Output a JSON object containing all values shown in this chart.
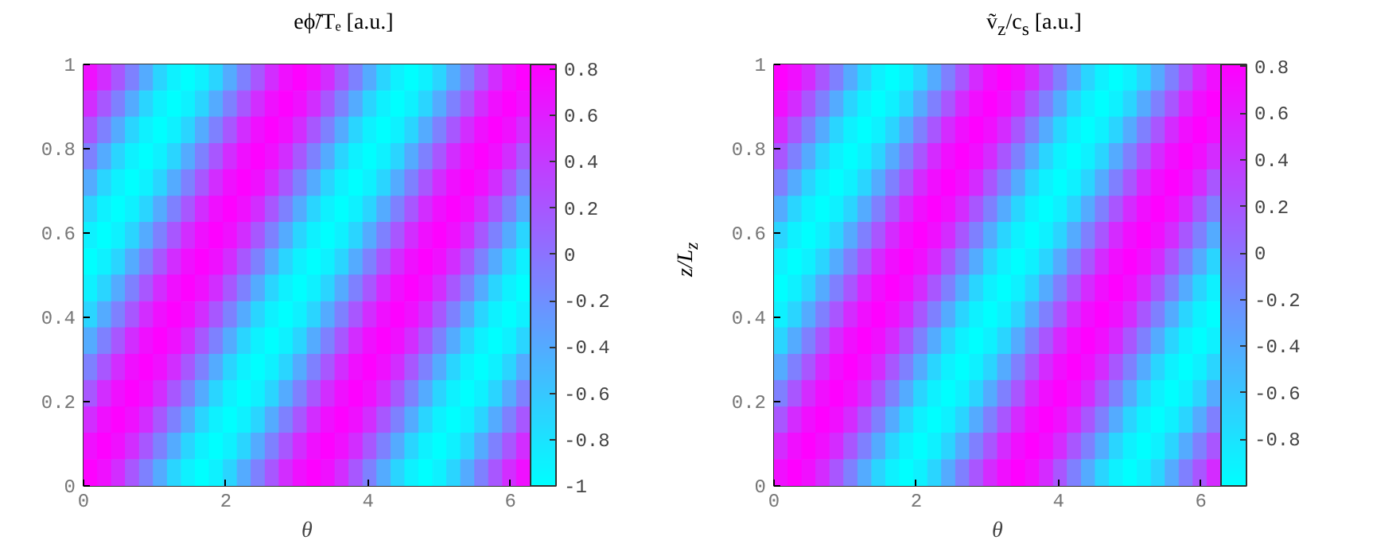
{
  "chart_data": [
    {
      "type": "heatmap",
      "title": "eϕ̃/Tₑ [a.u.]",
      "xlabel": "θ",
      "x": [
        0.098,
        0.295,
        0.491,
        0.687,
        0.884,
        1.08,
        1.276,
        1.473,
        1.669,
        1.865,
        2.062,
        2.258,
        2.454,
        2.651,
        2.847,
        3.043,
        3.24,
        3.436,
        3.632,
        3.829,
        4.025,
        4.221,
        4.418,
        4.614,
        4.81,
        5.007,
        5.203,
        5.399,
        5.596,
        5.792,
        5.988,
        6.185
      ],
      "y": [
        0.969,
        0.906,
        0.844,
        0.781,
        0.719,
        0.656,
        0.594,
        0.531,
        0.469,
        0.406,
        0.344,
        0.281,
        0.219,
        0.156,
        0.094,
        0.031
      ],
      "xlim": [
        0,
        6.283
      ],
      "xticks": [
        0,
        2,
        4,
        6
      ],
      "ylim": [
        0,
        1
      ],
      "yticks": [
        0,
        0.2,
        0.4,
        0.6,
        0.8,
        1
      ],
      "clim": [
        -1,
        0.82
      ],
      "cticks": [
        -1,
        -0.8,
        -0.6,
        -0.4,
        -0.2,
        0,
        0.2,
        0.4,
        0.6,
        0.8
      ],
      "cells": [
        [
          0.7,
          0.5,
          0.2,
          -0.1,
          -0.4,
          -0.7,
          -0.9,
          -1.0,
          -0.9,
          -0.7,
          -0.4,
          -0.1,
          0.2,
          0.5,
          0.7,
          0.8,
          0.7,
          0.5,
          0.2,
          -0.1,
          -0.4,
          -0.7,
          -0.9,
          -1.0,
          -0.9,
          -0.7,
          -0.4,
          -0.1,
          0.2,
          0.5,
          0.7,
          0.8
        ],
        [
          0.5,
          0.2,
          -0.1,
          -0.4,
          -0.7,
          -0.9,
          -1.0,
          -0.9,
          -0.7,
          -0.4,
          -0.1,
          0.2,
          0.5,
          0.7,
          0.8,
          0.7,
          0.5,
          0.2,
          -0.1,
          -0.4,
          -0.7,
          -0.9,
          -1.0,
          -0.9,
          -0.7,
          -0.4,
          -0.1,
          0.2,
          0.5,
          0.7,
          0.8,
          0.7
        ],
        [
          0.2,
          -0.1,
          -0.4,
          -0.7,
          -0.9,
          -1.0,
          -0.9,
          -0.7,
          -0.4,
          -0.1,
          0.2,
          0.5,
          0.7,
          0.8,
          0.7,
          0.5,
          0.2,
          -0.1,
          -0.4,
          -0.7,
          -0.9,
          -1.0,
          -0.9,
          -0.7,
          -0.4,
          -0.1,
          0.2,
          0.5,
          0.7,
          0.8,
          0.7,
          0.5
        ],
        [
          -0.1,
          -0.4,
          -0.7,
          -0.9,
          -1.0,
          -0.9,
          -0.7,
          -0.4,
          -0.1,
          0.2,
          0.5,
          0.7,
          0.8,
          0.7,
          0.5,
          0.2,
          -0.1,
          -0.4,
          -0.7,
          -0.9,
          -1.0,
          -0.9,
          -0.7,
          -0.4,
          -0.1,
          0.2,
          0.5,
          0.7,
          0.8,
          0.7,
          0.5,
          0.2
        ],
        [
          -0.4,
          -0.7,
          -0.9,
          -1.0,
          -0.9,
          -0.7,
          -0.4,
          -0.1,
          0.2,
          0.5,
          0.7,
          0.8,
          0.7,
          0.5,
          0.2,
          -0.1,
          -0.4,
          -0.7,
          -0.9,
          -1.0,
          -0.9,
          -0.7,
          -0.4,
          -0.1,
          0.2,
          0.5,
          0.7,
          0.8,
          0.7,
          0.5,
          0.2,
          -0.1
        ],
        [
          -0.7,
          -0.9,
          -1.0,
          -0.9,
          -0.7,
          -0.4,
          -0.1,
          0.2,
          0.5,
          0.7,
          0.8,
          0.7,
          0.5,
          0.2,
          -0.1,
          -0.4,
          -0.7,
          -0.9,
          -1.0,
          -0.9,
          -0.7,
          -0.4,
          -0.1,
          0.2,
          0.5,
          0.7,
          0.8,
          0.7,
          0.5,
          0.2,
          -0.1,
          -0.4
        ],
        [
          -0.9,
          -1.0,
          -0.9,
          -0.7,
          -0.4,
          -0.1,
          0.2,
          0.5,
          0.7,
          0.8,
          0.7,
          0.5,
          0.2,
          -0.1,
          -0.4,
          -0.7,
          -0.9,
          -1.0,
          -0.9,
          -0.7,
          -0.4,
          -0.1,
          0.2,
          0.5,
          0.7,
          0.8,
          0.7,
          0.5,
          0.2,
          -0.1,
          -0.4,
          -0.7
        ],
        [
          -1.0,
          -0.9,
          -0.7,
          -0.4,
          -0.1,
          0.2,
          0.5,
          0.7,
          0.8,
          0.7,
          0.5,
          0.2,
          -0.1,
          -0.4,
          -0.7,
          -0.9,
          -1.0,
          -0.9,
          -0.7,
          -0.4,
          -0.1,
          0.2,
          0.5,
          0.7,
          0.8,
          0.7,
          0.5,
          0.2,
          -0.1,
          -0.4,
          -0.7,
          -0.9
        ],
        [
          -0.9,
          -0.7,
          -0.4,
          -0.1,
          0.2,
          0.5,
          0.7,
          0.8,
          0.7,
          0.5,
          0.2,
          -0.1,
          -0.4,
          -0.7,
          -0.9,
          -1.0,
          -0.9,
          -0.7,
          -0.4,
          -0.1,
          0.2,
          0.5,
          0.7,
          0.8,
          0.7,
          0.5,
          0.2,
          -0.1,
          -0.4,
          -0.7,
          -0.9,
          -1.0
        ],
        [
          -0.7,
          -0.4,
          -0.1,
          0.2,
          0.5,
          0.7,
          0.8,
          0.7,
          0.5,
          0.2,
          -0.1,
          -0.4,
          -0.7,
          -0.9,
          -1.0,
          -0.9,
          -0.7,
          -0.4,
          -0.1,
          0.2,
          0.5,
          0.7,
          0.8,
          0.7,
          0.5,
          0.2,
          -0.1,
          -0.4,
          -0.7,
          -0.9,
          -1.0,
          -0.9
        ],
        [
          -0.4,
          -0.1,
          0.2,
          0.5,
          0.7,
          0.8,
          0.7,
          0.5,
          0.2,
          -0.1,
          -0.4,
          -0.7,
          -0.9,
          -1.0,
          -0.9,
          -0.7,
          -0.4,
          -0.1,
          0.2,
          0.5,
          0.7,
          0.8,
          0.7,
          0.5,
          0.2,
          -0.1,
          -0.4,
          -0.7,
          -0.9,
          -1.0,
          -0.9,
          -0.7
        ],
        [
          -0.1,
          0.2,
          0.5,
          0.7,
          0.8,
          0.7,
          0.5,
          0.2,
          -0.1,
          -0.4,
          -0.7,
          -0.9,
          -1.0,
          -0.9,
          -0.7,
          -0.4,
          -0.1,
          0.2,
          0.5,
          0.7,
          0.8,
          0.7,
          0.5,
          0.2,
          -0.1,
          -0.4,
          -0.7,
          -0.9,
          -1.0,
          -0.9,
          -0.7,
          -0.4
        ],
        [
          0.2,
          0.5,
          0.7,
          0.8,
          0.7,
          0.5,
          0.2,
          -0.1,
          -0.4,
          -0.7,
          -0.9,
          -1.0,
          -0.9,
          -0.7,
          -0.4,
          -0.1,
          0.2,
          0.5,
          0.7,
          0.8,
          0.7,
          0.5,
          0.2,
          -0.1,
          -0.4,
          -0.7,
          -0.9,
          -1.0,
          -0.9,
          -0.7,
          -0.4,
          -0.1
        ],
        [
          0.5,
          0.7,
          0.8,
          0.7,
          0.5,
          0.2,
          -0.1,
          -0.4,
          -0.7,
          -0.9,
          -1.0,
          -0.9,
          -0.7,
          -0.4,
          -0.1,
          0.2,
          0.5,
          0.7,
          0.8,
          0.7,
          0.5,
          0.2,
          -0.1,
          -0.4,
          -0.7,
          -0.9,
          -1.0,
          -0.9,
          -0.7,
          -0.4,
          -0.1,
          0.2
        ],
        [
          0.7,
          0.8,
          0.7,
          0.5,
          0.2,
          -0.1,
          -0.4,
          -0.7,
          -0.9,
          -1.0,
          -0.9,
          -0.7,
          -0.4,
          -0.1,
          0.2,
          0.5,
          0.7,
          0.8,
          0.7,
          0.5,
          0.2,
          -0.1,
          -0.4,
          -0.7,
          -0.9,
          -1.0,
          -0.9,
          -0.7,
          -0.4,
          -0.1,
          0.2,
          0.5
        ],
        [
          0.8,
          0.7,
          0.5,
          0.2,
          -0.1,
          -0.4,
          -0.7,
          -0.9,
          -1.0,
          -0.9,
          -0.7,
          -0.4,
          -0.1,
          0.2,
          0.5,
          0.7,
          0.8,
          0.7,
          0.5,
          0.2,
          -0.1,
          -0.4,
          -0.7,
          -0.9,
          -1.0,
          -0.9,
          -0.7,
          -0.4,
          -0.1,
          0.2,
          0.5,
          0.7
        ]
      ]
    },
    {
      "type": "heatmap",
      "title": "ṽ$_{z}$/c$_{s}$ [a.u.]",
      "xlabel": "θ",
      "ylabel": "z/L$_{z}$",
      "x": [
        0.098,
        0.295,
        0.491,
        0.687,
        0.884,
        1.08,
        1.276,
        1.473,
        1.669,
        1.865,
        2.062,
        2.258,
        2.454,
        2.651,
        2.847,
        3.043,
        3.24,
        3.436,
        3.632,
        3.829,
        4.025,
        4.221,
        4.418,
        4.614,
        4.81,
        5.007,
        5.203,
        5.399,
        5.596,
        5.792,
        5.988,
        6.185
      ],
      "y": [
        0.969,
        0.906,
        0.844,
        0.781,
        0.719,
        0.656,
        0.594,
        0.531,
        0.469,
        0.406,
        0.344,
        0.281,
        0.219,
        0.156,
        0.094,
        0.031
      ],
      "xlim": [
        0,
        6.283
      ],
      "xticks": [
        0,
        2,
        4,
        6
      ],
      "ylim": [
        0,
        1
      ],
      "yticks": [
        0,
        0.2,
        0.4,
        0.6,
        0.8,
        1
      ],
      "clim": [
        -1,
        0.81
      ],
      "cticks": [
        -0.8,
        -0.6,
        -0.4,
        -0.2,
        0,
        0.2,
        0.4,
        0.6,
        0.8
      ],
      "cells": [
        [
          0.8,
          0.7,
          0.5,
          0.2,
          -0.1,
          -0.4,
          -0.7,
          -0.9,
          -1.0,
          -0.9,
          -0.7,
          -0.4,
          -0.1,
          0.2,
          0.5,
          0.7,
          0.8,
          0.7,
          0.5,
          0.2,
          -0.1,
          -0.4,
          -0.7,
          -0.9,
          -1.0,
          -0.9,
          -0.7,
          -0.4,
          -0.1,
          0.2,
          0.5,
          0.7
        ],
        [
          0.7,
          0.5,
          0.2,
          -0.1,
          -0.4,
          -0.7,
          -0.9,
          -1.0,
          -0.9,
          -0.7,
          -0.4,
          -0.1,
          0.2,
          0.5,
          0.7,
          0.8,
          0.7,
          0.5,
          0.2,
          -0.1,
          -0.4,
          -0.7,
          -0.9,
          -1.0,
          -0.9,
          -0.7,
          -0.4,
          -0.1,
          0.2,
          0.5,
          0.7,
          0.8
        ],
        [
          0.5,
          0.2,
          -0.1,
          -0.4,
          -0.7,
          -0.9,
          -1.0,
          -0.9,
          -0.7,
          -0.4,
          -0.1,
          0.2,
          0.5,
          0.7,
          0.8,
          0.7,
          0.5,
          0.2,
          -0.1,
          -0.4,
          -0.7,
          -0.9,
          -1.0,
          -0.9,
          -0.7,
          -0.4,
          -0.1,
          0.2,
          0.5,
          0.7,
          0.8,
          0.7
        ],
        [
          0.2,
          -0.1,
          -0.4,
          -0.7,
          -0.9,
          -1.0,
          -0.9,
          -0.7,
          -0.4,
          -0.1,
          0.2,
          0.5,
          0.7,
          0.8,
          0.7,
          0.5,
          0.2,
          -0.1,
          -0.4,
          -0.7,
          -0.9,
          -1.0,
          -0.9,
          -0.7,
          -0.4,
          -0.1,
          0.2,
          0.5,
          0.7,
          0.8,
          0.7,
          0.5
        ],
        [
          -0.1,
          -0.4,
          -0.7,
          -0.9,
          -1.0,
          -0.9,
          -0.7,
          -0.4,
          -0.1,
          0.2,
          0.5,
          0.7,
          0.8,
          0.7,
          0.5,
          0.2,
          -0.1,
          -0.4,
          -0.7,
          -0.9,
          -1.0,
          -0.9,
          -0.7,
          -0.4,
          -0.1,
          0.2,
          0.5,
          0.7,
          0.8,
          0.7,
          0.5,
          0.2
        ],
        [
          -0.4,
          -0.7,
          -0.9,
          -1.0,
          -0.9,
          -0.7,
          -0.4,
          -0.1,
          0.2,
          0.5,
          0.7,
          0.8,
          0.7,
          0.5,
          0.2,
          -0.1,
          -0.4,
          -0.7,
          -0.9,
          -1.0,
          -0.9,
          -0.7,
          -0.4,
          -0.1,
          0.2,
          0.5,
          0.7,
          0.8,
          0.7,
          0.5,
          0.2,
          -0.1
        ],
        [
          -0.7,
          -0.9,
          -1.0,
          -0.9,
          -0.7,
          -0.4,
          -0.1,
          0.2,
          0.5,
          0.7,
          0.8,
          0.7,
          0.5,
          0.2,
          -0.1,
          -0.4,
          -0.7,
          -0.9,
          -1.0,
          -0.9,
          -0.7,
          -0.4,
          -0.1,
          0.2,
          0.5,
          0.7,
          0.8,
          0.7,
          0.5,
          0.2,
          -0.1,
          -0.4
        ],
        [
          -0.9,
          -1.0,
          -0.9,
          -0.7,
          -0.4,
          -0.1,
          0.2,
          0.5,
          0.7,
          0.8,
          0.7,
          0.5,
          0.2,
          -0.1,
          -0.4,
          -0.7,
          -0.9,
          -1.0,
          -0.9,
          -0.7,
          -0.4,
          -0.1,
          0.2,
          0.5,
          0.7,
          0.8,
          0.7,
          0.5,
          0.2,
          -0.1,
          -0.4,
          -0.7
        ],
        [
          -1.0,
          -0.9,
          -0.7,
          -0.4,
          -0.1,
          0.2,
          0.5,
          0.7,
          0.8,
          0.7,
          0.5,
          0.2,
          -0.1,
          -0.4,
          -0.7,
          -0.9,
          -1.0,
          -0.9,
          -0.7,
          -0.4,
          -0.1,
          0.2,
          0.5,
          0.7,
          0.8,
          0.7,
          0.5,
          0.2,
          -0.1,
          -0.4,
          -0.7,
          -0.9
        ],
        [
          -0.9,
          -0.7,
          -0.4,
          -0.1,
          0.2,
          0.5,
          0.7,
          0.8,
          0.7,
          0.5,
          0.2,
          -0.1,
          -0.4,
          -0.7,
          -0.9,
          -1.0,
          -0.9,
          -0.7,
          -0.4,
          -0.1,
          0.2,
          0.5,
          0.7,
          0.8,
          0.7,
          0.5,
          0.2,
          -0.1,
          -0.4,
          -0.7,
          -0.9,
          -1.0
        ],
        [
          -0.7,
          -0.4,
          -0.1,
          0.2,
          0.5,
          0.7,
          0.8,
          0.7,
          0.5,
          0.2,
          -0.1,
          -0.4,
          -0.7,
          -0.9,
          -1.0,
          -0.9,
          -0.7,
          -0.4,
          -0.1,
          0.2,
          0.5,
          0.7,
          0.8,
          0.7,
          0.5,
          0.2,
          -0.1,
          -0.4,
          -0.7,
          -0.9,
          -1.0,
          -0.9
        ],
        [
          -0.4,
          -0.1,
          0.2,
          0.5,
          0.7,
          0.8,
          0.7,
          0.5,
          0.2,
          -0.1,
          -0.4,
          -0.7,
          -0.9,
          -1.0,
          -0.9,
          -0.7,
          -0.4,
          -0.1,
          0.2,
          0.5,
          0.7,
          0.8,
          0.7,
          0.5,
          0.2,
          -0.1,
          -0.4,
          -0.7,
          -0.9,
          -1.0,
          -0.9,
          -0.7
        ],
        [
          -0.1,
          0.2,
          0.5,
          0.7,
          0.8,
          0.7,
          0.5,
          0.2,
          -0.1,
          -0.4,
          -0.7,
          -0.9,
          -1.0,
          -0.9,
          -0.7,
          -0.4,
          -0.1,
          0.2,
          0.5,
          0.7,
          0.8,
          0.7,
          0.5,
          0.2,
          -0.1,
          -0.4,
          -0.7,
          -0.9,
          -1.0,
          -0.9,
          -0.7,
          -0.4
        ],
        [
          0.2,
          0.5,
          0.7,
          0.8,
          0.7,
          0.5,
          0.2,
          -0.1,
          -0.4,
          -0.7,
          -0.9,
          -1.0,
          -0.9,
          -0.7,
          -0.4,
          -0.1,
          0.2,
          0.5,
          0.7,
          0.8,
          0.7,
          0.5,
          0.2,
          -0.1,
          -0.4,
          -0.7,
          -0.9,
          -1.0,
          -0.9,
          -0.7,
          -0.4,
          -0.1
        ],
        [
          0.5,
          0.7,
          0.8,
          0.7,
          0.5,
          0.2,
          -0.1,
          -0.4,
          -0.7,
          -0.9,
          -1.0,
          -0.9,
          -0.7,
          -0.4,
          -0.1,
          0.2,
          0.5,
          0.7,
          0.8,
          0.7,
          0.5,
          0.2,
          -0.1,
          -0.4,
          -0.7,
          -0.9,
          -1.0,
          -0.9,
          -0.7,
          -0.4,
          -0.1,
          0.2
        ],
        [
          0.7,
          0.8,
          0.7,
          0.5,
          0.2,
          -0.1,
          -0.4,
          -0.7,
          -0.9,
          -1.0,
          -0.9,
          -0.7,
          -0.4,
          -0.1,
          0.2,
          0.5,
          0.7,
          0.8,
          0.7,
          0.5,
          0.2,
          -0.1,
          -0.4,
          -0.7,
          -0.9,
          -1.0,
          -0.9,
          -0.7,
          -0.4,
          -0.1,
          0.2,
          0.5
        ]
      ]
    }
  ]
}
